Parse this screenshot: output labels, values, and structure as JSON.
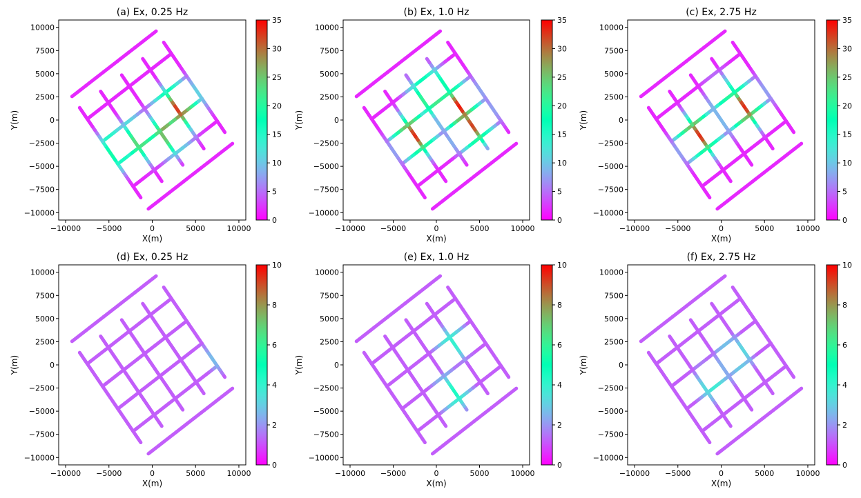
{
  "chart_data": [
    {
      "type": "scatter",
      "title": "(a) Ex, 0.25 Hz",
      "xlabel": "X(m)",
      "ylabel": "Y(m)",
      "xlim": [
        -10800,
        10800
      ],
      "ylim": [
        -10800,
        10800
      ],
      "xticks": [
        "−10000",
        "−5000",
        "0",
        "5000",
        "10000"
      ],
      "yticks": [
        "−10000",
        "−7500",
        "−5000",
        "−2500",
        "0",
        "2500",
        "5000",
        "7500",
        "10000"
      ],
      "colorbar": {
        "range": [
          0,
          35
        ],
        "ticks": [
          "0",
          "5",
          "10",
          "15",
          "20",
          "25",
          "30",
          "35"
        ]
      },
      "layout": "survey lines in a grid rotated ~36°",
      "highlights": [
        {
          "x": 3000,
          "y": 1500,
          "value": 33
        },
        {
          "x": 1800,
          "y": -1200,
          "value": 28
        },
        {
          "x": -1500,
          "y": -2000,
          "value": 25
        },
        {
          "x": -4000,
          "y": -3000,
          "value": 22
        }
      ]
    },
    {
      "type": "scatter",
      "title": "(b) Ex, 1.0 Hz",
      "xlabel": "X(m)",
      "ylabel": "Y(m)",
      "xlim": [
        -10800,
        10800
      ],
      "ylim": [
        -10800,
        10800
      ],
      "xticks": [
        "−10000",
        "−5000",
        "0",
        "5000",
        "10000"
      ],
      "yticks": [
        "−10000",
        "−7500",
        "−5000",
        "−2500",
        "0",
        "2500",
        "5000",
        "7500",
        "10000"
      ],
      "colorbar": {
        "range": [
          0,
          35
        ],
        "ticks": [
          "0",
          "5",
          "10",
          "15",
          "20",
          "25",
          "30",
          "35"
        ]
      },
      "layout": "survey lines in a grid rotated ~36°",
      "highlights": [
        {
          "x": 2500,
          "y": 1500,
          "value": 34
        },
        {
          "x": -2500,
          "y": -1500,
          "value": 33
        },
        {
          "x": 4000,
          "y": -500,
          "value": 32
        },
        {
          "x": -500,
          "y": 3000,
          "value": 28
        }
      ]
    },
    {
      "type": "scatter",
      "title": "(c) Ex, 2.75 Hz",
      "xlabel": "X(m)",
      "ylabel": "Y(m)",
      "xlim": [
        -10800,
        10800
      ],
      "ylim": [
        -10800,
        10800
      ],
      "xticks": [
        "−10000",
        "−5000",
        "0",
        "5000",
        "10000"
      ],
      "yticks": [
        "−10000",
        "−7500",
        "−5000",
        "−2500",
        "0",
        "2500",
        "5000",
        "7500",
        "10000"
      ],
      "colorbar": {
        "range": [
          0,
          35
        ],
        "ticks": [
          "0",
          "5",
          "10",
          "15",
          "20",
          "25",
          "30",
          "35"
        ]
      },
      "layout": "survey lines in a grid rotated ~36°",
      "highlights": [
        {
          "x": 2500,
          "y": 1500,
          "value": 33
        },
        {
          "x": -2500,
          "y": -1500,
          "value": 33
        },
        {
          "x": 1000,
          "y": 2500,
          "value": 20
        }
      ]
    },
    {
      "type": "scatter",
      "title": "(d) Ex, 0.25 Hz",
      "xlabel": "X(m)",
      "ylabel": "Y(m)",
      "xlim": [
        -10800,
        10800
      ],
      "ylim": [
        -10800,
        10800
      ],
      "xticks": [
        "−10000",
        "−5000",
        "0",
        "5000",
        "10000"
      ],
      "yticks": [
        "−10000",
        "−7500",
        "−5000",
        "−2500",
        "0",
        "2500",
        "5000",
        "7500",
        "10000"
      ],
      "colorbar": {
        "range": [
          0,
          10
        ],
        "ticks": [
          "0",
          "2",
          "4",
          "6",
          "8",
          "10"
        ]
      },
      "layout": "survey lines in a grid rotated ~36°",
      "highlights": [
        {
          "x": 0,
          "y": 0,
          "value": 0.5
        },
        {
          "x": 8000,
          "y": 1500,
          "value": 3.5
        }
      ]
    },
    {
      "type": "scatter",
      "title": "(e) Ex, 1.0 Hz",
      "xlabel": "X(m)",
      "ylabel": "Y(m)",
      "xlim": [
        -10800,
        10800
      ],
      "ylim": [
        -10800,
        10800
      ],
      "xticks": [
        "−10000",
        "−5000",
        "0",
        "5000",
        "10000"
      ],
      "yticks": [
        "−10000",
        "−7500",
        "−5000",
        "−2500",
        "0",
        "2500",
        "5000",
        "7500",
        "10000"
      ],
      "colorbar": {
        "range": [
          0,
          10
        ],
        "ticks": [
          "0",
          "2",
          "4",
          "6",
          "8",
          "10"
        ]
      },
      "layout": "survey lines in a grid rotated ~36°",
      "highlights": [
        {
          "x": 2000,
          "y": 2500,
          "value": 4
        },
        {
          "x": 2000,
          "y": -2800,
          "value": 4.5
        },
        {
          "x": 0,
          "y": 0,
          "value": 0.5
        }
      ]
    },
    {
      "type": "scatter",
      "title": "(f) Ex, 2.75 Hz",
      "xlabel": "X(m)",
      "ylabel": "Y(m)",
      "xlim": [
        -10800,
        10800
      ],
      "ylim": [
        -10800,
        10800
      ],
      "xticks": [
        "−10000",
        "−5000",
        "0",
        "5000",
        "10000"
      ],
      "yticks": [
        "−10000",
        "−7500",
        "−5000",
        "−2500",
        "0",
        "2500",
        "5000",
        "7500",
        "10000"
      ],
      "colorbar": {
        "range": [
          0,
          10
        ],
        "ticks": [
          "0",
          "2",
          "4",
          "6",
          "8",
          "10"
        ]
      },
      "layout": "survey lines in a grid rotated ~36°",
      "highlights": [
        {
          "x": 1500,
          "y": 1000,
          "value": 4
        },
        {
          "x": -1000,
          "y": -1800,
          "value": 4
        },
        {
          "x": 0,
          "y": 0,
          "value": 0.5
        }
      ]
    }
  ],
  "colormap": "rainbow",
  "colors": {
    "rainbow_low": "#8000ff",
    "rainbow_high": "#ff0000",
    "frame": "#000000",
    "background": "#ffffff"
  }
}
